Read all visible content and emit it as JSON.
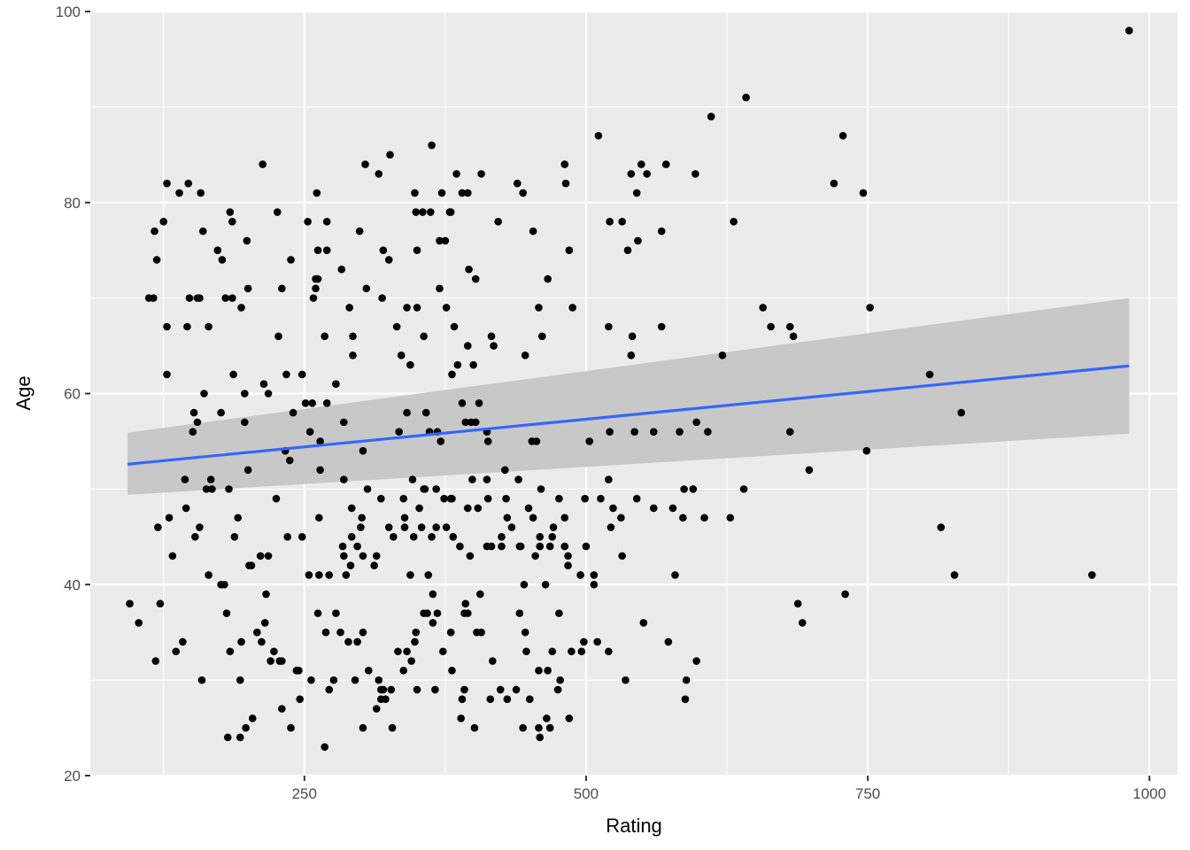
{
  "chart_data": {
    "type": "scatter",
    "xlabel": "Rating",
    "ylabel": "Age",
    "xlim": [
      60,
      1025
    ],
    "ylim": [
      20,
      100
    ],
    "x_ticks": [
      250,
      500,
      750,
      1000
    ],
    "y_ticks": [
      20,
      40,
      60,
      80,
      100
    ],
    "grid": true,
    "colors": {
      "panel_bg": "#ebebeb",
      "grid": "#ffffff",
      "point": "#000000",
      "fit_line": "#3366ff",
      "ribbon": "#c8c8c8"
    },
    "fit": {
      "method": "lm",
      "x": [
        93,
        982
      ],
      "y": [
        52.6,
        62.9
      ],
      "ci_lower": [
        49.4,
        55.8
      ],
      "ci_upper": [
        55.9,
        70.0
      ]
    },
    "points": [
      [
        982,
        98
      ],
      [
        642,
        91
      ],
      [
        611,
        89
      ],
      [
        511,
        87
      ],
      [
        728,
        87
      ],
      [
        363,
        86
      ],
      [
        326,
        85
      ],
      [
        304,
        84
      ],
      [
        213,
        84
      ],
      [
        481,
        84
      ],
      [
        549,
        84
      ],
      [
        571,
        84
      ],
      [
        439,
        82
      ],
      [
        482,
        82
      ],
      [
        720,
        82
      ],
      [
        128,
        82
      ],
      [
        147,
        82
      ],
      [
        385,
        83
      ],
      [
        407,
        83
      ],
      [
        597,
        83
      ],
      [
        540,
        83
      ],
      [
        316,
        83
      ],
      [
        554,
        83
      ],
      [
        158,
        81
      ],
      [
        139,
        81
      ],
      [
        348,
        81
      ],
      [
        372,
        81
      ],
      [
        395,
        81
      ],
      [
        390,
        81
      ],
      [
        444,
        81
      ],
      [
        545,
        81
      ],
      [
        746,
        81
      ],
      [
        261,
        81
      ],
      [
        379,
        79
      ],
      [
        184,
        79
      ],
      [
        226,
        79
      ],
      [
        349,
        79
      ],
      [
        355,
        79
      ],
      [
        362,
        79
      ],
      [
        380,
        79
      ],
      [
        253,
        78
      ],
      [
        270,
        78
      ],
      [
        186,
        78
      ],
      [
        125,
        78
      ],
      [
        631,
        78
      ],
      [
        422,
        78
      ],
      [
        521,
        78
      ],
      [
        532,
        78
      ],
      [
        117,
        77
      ],
      [
        160,
        77
      ],
      [
        299,
        77
      ],
      [
        453,
        77
      ],
      [
        567,
        77
      ],
      [
        199,
        76
      ],
      [
        375,
        76
      ],
      [
        370,
        76
      ],
      [
        546,
        76
      ],
      [
        173,
        75
      ],
      [
        262,
        75
      ],
      [
        270,
        75
      ],
      [
        320,
        75
      ],
      [
        350,
        75
      ],
      [
        485,
        75
      ],
      [
        537,
        75
      ],
      [
        177,
        74
      ],
      [
        325,
        74
      ],
      [
        238,
        74
      ],
      [
        119,
        74
      ],
      [
        283,
        73
      ],
      [
        396,
        73
      ],
      [
        260,
        72
      ],
      [
        262,
        72
      ],
      [
        466,
        72
      ],
      [
        402,
        72
      ],
      [
        116,
        70
      ],
      [
        148,
        70
      ],
      [
        155,
        70
      ],
      [
        186,
        70
      ],
      [
        194,
        69
      ],
      [
        258,
        70
      ],
      [
        290,
        69
      ],
      [
        319,
        70
      ],
      [
        341,
        69
      ],
      [
        350,
        69
      ],
      [
        376,
        69
      ],
      [
        458,
        69
      ],
      [
        488,
        69
      ],
      [
        657,
        69
      ],
      [
        752,
        69
      ],
      [
        112,
        70
      ],
      [
        157,
        70
      ],
      [
        180,
        70
      ],
      [
        200,
        71
      ],
      [
        230,
        71
      ],
      [
        260,
        71
      ],
      [
        305,
        71
      ],
      [
        370,
        71
      ],
      [
        128,
        67
      ],
      [
        146,
        67
      ],
      [
        165,
        67
      ],
      [
        268,
        66
      ],
      [
        293,
        66
      ],
      [
        332,
        67
      ],
      [
        383,
        67
      ],
      [
        416,
        66
      ],
      [
        461,
        66
      ],
      [
        520,
        67
      ],
      [
        541,
        66
      ],
      [
        567,
        67
      ],
      [
        664,
        67
      ],
      [
        684,
        66
      ],
      [
        681,
        67
      ],
      [
        227,
        66
      ],
      [
        356,
        66
      ],
      [
        386,
        63
      ],
      [
        400,
        63
      ],
      [
        293,
        64
      ],
      [
        336,
        64
      ],
      [
        395,
        65
      ],
      [
        418,
        65
      ],
      [
        446,
        64
      ],
      [
        540,
        64
      ],
      [
        621,
        64
      ],
      [
        234,
        62
      ],
      [
        248,
        62
      ],
      [
        278,
        61
      ],
      [
        344,
        63
      ],
      [
        381,
        62
      ],
      [
        805,
        62
      ],
      [
        128,
        62
      ],
      [
        187,
        62
      ],
      [
        197,
        60
      ],
      [
        214,
        61
      ],
      [
        218,
        60
      ],
      [
        161,
        60
      ],
      [
        176,
        58
      ],
      [
        152,
        58
      ],
      [
        155,
        57
      ],
      [
        240,
        58
      ],
      [
        251,
        59
      ],
      [
        257,
        59
      ],
      [
        270,
        59
      ],
      [
        341,
        58
      ],
      [
        358,
        58
      ],
      [
        390,
        59
      ],
      [
        405,
        59
      ],
      [
        402,
        57
      ],
      [
        393,
        57
      ],
      [
        413,
        55
      ],
      [
        456,
        55
      ],
      [
        503,
        55
      ],
      [
        521,
        56
      ],
      [
        543,
        56
      ],
      [
        598,
        57
      ],
      [
        833,
        58
      ],
      [
        151,
        56
      ],
      [
        197,
        57
      ],
      [
        255,
        56
      ],
      [
        285,
        57
      ],
      [
        264,
        55
      ],
      [
        302,
        54
      ],
      [
        334,
        56
      ],
      [
        361,
        56
      ],
      [
        368,
        56
      ],
      [
        371,
        55
      ],
      [
        398,
        57
      ],
      [
        412,
        56
      ],
      [
        428,
        52
      ],
      [
        452,
        55
      ],
      [
        560,
        56
      ],
      [
        583,
        56
      ],
      [
        608,
        56
      ],
      [
        681,
        56
      ],
      [
        749,
        54
      ],
      [
        144,
        51
      ],
      [
        163,
        50
      ],
      [
        167,
        51
      ],
      [
        200,
        52
      ],
      [
        233,
        54
      ],
      [
        264,
        52
      ],
      [
        285,
        51
      ],
      [
        306,
        50
      ],
      [
        318,
        49
      ],
      [
        346,
        51
      ],
      [
        356,
        50
      ],
      [
        357,
        50
      ],
      [
        367,
        50
      ],
      [
        374,
        49
      ],
      [
        380,
        49
      ],
      [
        399,
        51
      ],
      [
        412,
        51
      ],
      [
        429,
        49
      ],
      [
        440,
        51
      ],
      [
        460,
        50
      ],
      [
        476,
        49
      ],
      [
        499,
        49
      ],
      [
        513,
        49
      ],
      [
        524,
        48
      ],
      [
        577,
        48
      ],
      [
        587,
        50
      ],
      [
        595,
        50
      ],
      [
        640,
        50
      ],
      [
        698,
        52
      ],
      [
        130,
        47
      ],
      [
        145,
        48
      ],
      [
        168,
        50
      ],
      [
        183,
        50
      ],
      [
        237,
        53
      ],
      [
        292,
        48
      ],
      [
        301,
        47
      ],
      [
        339,
        47
      ],
      [
        352,
        48
      ],
      [
        381,
        49
      ],
      [
        395,
        48
      ],
      [
        413,
        49
      ],
      [
        430,
        47
      ],
      [
        449,
        48
      ],
      [
        471,
        46
      ],
      [
        481,
        47
      ],
      [
        520,
        51
      ],
      [
        120,
        46
      ],
      [
        157,
        46
      ],
      [
        191,
        47
      ],
      [
        211,
        43
      ],
      [
        218,
        43
      ],
      [
        225,
        49
      ],
      [
        263,
        47
      ],
      [
        285,
        43
      ],
      [
        300,
        46
      ],
      [
        325,
        46
      ],
      [
        338,
        49
      ],
      [
        354,
        46
      ],
      [
        363,
        45
      ],
      [
        367,
        46
      ],
      [
        376,
        46
      ],
      [
        382,
        45
      ],
      [
        388,
        44
      ],
      [
        404,
        48
      ],
      [
        425,
        44
      ],
      [
        434,
        46
      ],
      [
        442,
        44
      ],
      [
        453,
        47
      ],
      [
        459,
        44
      ],
      [
        470,
        45
      ],
      [
        484,
        42
      ],
      [
        495,
        41
      ],
      [
        507,
        41
      ],
      [
        522,
        46
      ],
      [
        531,
        47
      ],
      [
        545,
        49
      ],
      [
        586,
        47
      ],
      [
        605,
        47
      ],
      [
        628,
        47
      ],
      [
        815,
        46
      ],
      [
        179,
        40
      ],
      [
        201,
        42
      ],
      [
        235,
        45
      ],
      [
        284,
        44
      ],
      [
        292,
        45
      ],
      [
        297,
        44
      ],
      [
        302,
        43
      ],
      [
        312,
        42
      ],
      [
        344,
        41
      ],
      [
        360,
        41
      ],
      [
        397,
        43
      ],
      [
        416,
        44
      ],
      [
        445,
        40
      ],
      [
        459,
        45
      ],
      [
        464,
        40
      ],
      [
        481,
        44
      ],
      [
        507,
        40
      ],
      [
        579,
        41
      ],
      [
        827,
        41
      ],
      [
        949,
        41
      ],
      [
        95,
        38
      ],
      [
        103,
        36
      ],
      [
        118,
        32
      ],
      [
        133,
        43
      ],
      [
        153,
        45
      ],
      [
        165,
        41
      ],
      [
        176,
        40
      ],
      [
        188,
        45
      ],
      [
        203,
        42
      ],
      [
        216,
        39
      ],
      [
        248,
        45
      ],
      [
        254,
        41
      ],
      [
        263,
        41
      ],
      [
        272,
        41
      ],
      [
        287,
        41
      ],
      [
        291,
        42
      ],
      [
        314,
        43
      ],
      [
        329,
        45
      ],
      [
        339,
        46
      ],
      [
        347,
        45
      ],
      [
        364,
        39
      ],
      [
        393,
        38
      ],
      [
        406,
        39
      ],
      [
        412,
        44
      ],
      [
        425,
        45
      ],
      [
        441,
        44
      ],
      [
        455,
        43
      ],
      [
        468,
        44
      ],
      [
        484,
        43
      ],
      [
        500,
        44
      ],
      [
        532,
        43
      ],
      [
        560,
        48
      ],
      [
        122,
        38
      ],
      [
        136,
        33
      ],
      [
        142,
        34
      ],
      [
        181,
        37
      ],
      [
        184,
        33
      ],
      [
        194,
        34
      ],
      [
        208,
        35
      ],
      [
        215,
        36
      ],
      [
        220,
        32
      ],
      [
        228,
        32
      ],
      [
        245,
        31
      ],
      [
        256,
        30
      ],
      [
        262,
        37
      ],
      [
        269,
        35
      ],
      [
        278,
        37
      ],
      [
        282,
        35
      ],
      [
        289,
        34
      ],
      [
        295,
        30
      ],
      [
        297,
        34
      ],
      [
        302,
        35
      ],
      [
        316,
        30
      ],
      [
        320,
        29
      ],
      [
        333,
        33
      ],
      [
        338,
        31
      ],
      [
        348,
        34
      ],
      [
        359,
        37
      ],
      [
        364,
        36
      ],
      [
        373,
        33
      ],
      [
        381,
        31
      ],
      [
        392,
        37
      ],
      [
        403,
        35
      ],
      [
        424,
        29
      ],
      [
        441,
        37
      ],
      [
        447,
        33
      ],
      [
        458,
        31
      ],
      [
        466,
        31
      ],
      [
        477,
        30
      ],
      [
        498,
        34
      ],
      [
        688,
        38
      ],
      [
        730,
        39
      ],
      [
        692,
        36
      ],
      [
        589,
        30
      ],
      [
        159,
        30
      ],
      [
        193,
        30
      ],
      [
        204,
        26
      ],
      [
        212,
        34
      ],
      [
        223,
        33
      ],
      [
        230,
        32
      ],
      [
        243,
        31
      ],
      [
        246,
        28
      ],
      [
        272,
        29
      ],
      [
        276,
        30
      ],
      [
        307,
        31
      ],
      [
        318,
        28
      ],
      [
        327,
        29
      ],
      [
        345,
        32
      ],
      [
        350,
        29
      ],
      [
        390,
        28
      ],
      [
        417,
        32
      ],
      [
        430,
        28
      ],
      [
        438,
        29
      ],
      [
        450,
        28
      ],
      [
        458,
        25
      ],
      [
        475,
        29
      ],
      [
        485,
        26
      ],
      [
        182,
        24
      ],
      [
        193,
        24
      ],
      [
        198,
        25
      ],
      [
        238,
        25
      ],
      [
        268,
        23
      ],
      [
        302,
        25
      ],
      [
        318,
        29
      ],
      [
        328,
        25
      ],
      [
        401,
        25
      ],
      [
        389,
        26
      ],
      [
        415,
        28
      ],
      [
        444,
        25
      ],
      [
        468,
        25
      ],
      [
        459,
        24
      ],
      [
        465,
        26
      ],
      [
        230,
        27
      ],
      [
        314,
        27
      ],
      [
        366,
        29
      ],
      [
        392,
        29
      ],
      [
        322,
        28
      ],
      [
        341,
        33
      ],
      [
        349,
        35
      ],
      [
        356,
        37
      ],
      [
        368,
        37
      ],
      [
        380,
        35
      ],
      [
        395,
        37
      ],
      [
        407,
        35
      ],
      [
        446,
        35
      ],
      [
        470,
        33
      ],
      [
        476,
        37
      ],
      [
        487,
        33
      ],
      [
        496,
        33
      ],
      [
        510,
        34
      ],
      [
        520,
        33
      ],
      [
        535,
        30
      ],
      [
        551,
        36
      ],
      [
        573,
        34
      ],
      [
        588,
        28
      ],
      [
        598,
        32
      ]
    ]
  }
}
